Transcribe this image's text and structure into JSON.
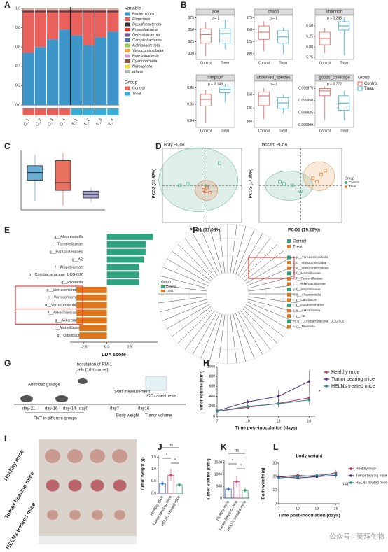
{
  "panel_labels": [
    "A",
    "B",
    "C",
    "D",
    "E",
    "F",
    "G",
    "H",
    "I",
    "J",
    "K",
    "L"
  ],
  "chart_data": [
    {
      "type": "stacked_bar",
      "categories": [
        "C_1",
        "C_2",
        "C_3",
        "C_4",
        "T_1",
        "T_2",
        "T_3",
        "T_4"
      ],
      "series": [
        {
          "name": "Bacteroidota",
          "color": "#3d95c9",
          "values": [
            0.54,
            0.6,
            0.68,
            0.78,
            0.72,
            0.62,
            0.7,
            0.76
          ]
        },
        {
          "name": "Firmicutes",
          "color": "#e8615d",
          "values": [
            0.42,
            0.36,
            0.28,
            0.18,
            0.24,
            0.34,
            0.26,
            0.2
          ]
        },
        {
          "name": "Desulfobacterota",
          "color": "#2b2b2b",
          "values": [
            0.01,
            0.01,
            0.01,
            0.01,
            0.01,
            0.01,
            0.01,
            0.01
          ]
        },
        {
          "name": "Proteobacteria",
          "color": "#e23b2e",
          "values": [
            0.008,
            0.008,
            0.008,
            0.008,
            0.008,
            0.008,
            0.008,
            0.008
          ]
        },
        {
          "name": "Deferribacterota",
          "color": "#7a5a9e",
          "values": [
            0.005,
            0.005,
            0.005,
            0.005,
            0.005,
            0.005,
            0.005,
            0.005
          ]
        },
        {
          "name": "Campilobacterota",
          "color": "#4a6fb5",
          "values": [
            0.004,
            0.004,
            0.004,
            0.004,
            0.004,
            0.004,
            0.004,
            0.004
          ]
        },
        {
          "name": "Actinobacteriota",
          "color": "#9bc95b",
          "values": [
            0.003,
            0.003,
            0.003,
            0.003,
            0.003,
            0.003,
            0.003,
            0.003
          ]
        },
        {
          "name": "Verrucomicrobiota",
          "color": "#f1a340",
          "values": [
            0.003,
            0.003,
            0.003,
            0.003,
            0.003,
            0.003,
            0.003,
            0.003
          ]
        },
        {
          "name": "Patescibacteria",
          "color": "#c7a0d0",
          "values": [
            0.002,
            0.002,
            0.002,
            0.002,
            0.002,
            0.002,
            0.002,
            0.002
          ]
        },
        {
          "name": "Cyanobacteria",
          "color": "#8c564b",
          "values": [
            0.002,
            0.002,
            0.002,
            0.002,
            0.002,
            0.002,
            0.002,
            0.002
          ]
        },
        {
          "name": "Nitrospirota",
          "color": "#f2d94e",
          "values": [
            0.001,
            0.001,
            0.001,
            0.001,
            0.001,
            0.001,
            0.001,
            0.001
          ]
        },
        {
          "name": "others",
          "color": "#b0b0b0",
          "values": [
            0.002,
            0.002,
            0.002,
            0.002,
            0.002,
            0.002,
            0.002,
            0.002
          ]
        }
      ],
      "ylim": [
        0,
        1
      ],
      "yticks": [
        {
          "value": 0,
          "label": "0.0"
        },
        0.2,
        0.4,
        0.6,
        0.8,
        {
          "value": 1,
          "label": "1.0"
        }
      ],
      "legend_title": "Variable",
      "groups": {
        "title": "Group",
        "names": [
          "Control",
          "Treat"
        ],
        "colors": [
          "#e8605a",
          "#3aaed8"
        ],
        "members": [
          0,
          0,
          0,
          0,
          1,
          1,
          1,
          1
        ]
      }
    },
    {
      "type": "box",
      "title": "ace",
      "annotation": "p = 1",
      "categories": [
        "Control",
        "Treat"
      ],
      "colors": [
        "#e8605a",
        "#3aaed8"
      ],
      "boxes": [
        {
          "min": 295,
          "q1": 322,
          "median": 340,
          "q3": 352,
          "max": 365
        },
        {
          "min": 310,
          "q1": 322,
          "median": 342,
          "q3": 352,
          "max": 372
        }
      ],
      "ylim": [
        288,
        380
      ],
      "yticks": [
        300,
        325,
        350,
        375
      ]
    },
    {
      "type": "box",
      "title": "chao1",
      "annotation": "p = 1",
      "categories": [
        "Control",
        "Treat"
      ],
      "colors": [
        "#e8605a",
        "#3aaed8"
      ],
      "boxes": [
        {
          "min": 305,
          "q1": 330,
          "median": 345,
          "q3": 358,
          "max": 368
        },
        {
          "min": 300,
          "q1": 322,
          "median": 335,
          "q3": 348,
          "max": 355
        }
      ],
      "ylim": [
        288,
        380
      ],
      "yticks": [
        300,
        325,
        350,
        375
      ]
    },
    {
      "type": "box",
      "title": "shannon",
      "annotation": "p = 0.248",
      "categories": [
        "Control",
        "Treat"
      ],
      "colors": [
        "#e8605a",
        "#3aaed8"
      ],
      "boxes": [
        {
          "min": 5.85,
          "q1": 6.05,
          "median": 6.2,
          "q3": 6.35,
          "max": 6.45
        },
        {
          "min": 5.8,
          "q1": 6.4,
          "median": 6.5,
          "q3": 6.6,
          "max": 6.7
        }
      ],
      "ylim": [
        5.7,
        6.75
      ],
      "yticks": [
        {
          "value": 5.75,
          "label": "5.75"
        },
        {
          "value": 6,
          "label": "6.00"
        },
        {
          "value": 6.25,
          "label": "6.25"
        },
        {
          "value": 6.5,
          "label": "6.50"
        }
      ]
    },
    {
      "type": "box",
      "title": "simpson",
      "annotation": "p = 0.149",
      "categories": [
        "Control",
        "Treat"
      ],
      "colors": [
        "#e8605a",
        "#3aaed8"
      ],
      "boxes": [
        {
          "min": 0.937,
          "q1": 0.958,
          "median": 0.966,
          "q3": 0.972,
          "max": 0.978
        },
        {
          "min": 0.962,
          "q1": 0.974,
          "median": 0.978,
          "q3": 0.981,
          "max": 0.985
        }
      ],
      "ylim": [
        0.932,
        0.988
      ],
      "yticks": [
        0.94,
        0.96,
        0.98
      ]
    },
    {
      "type": "box",
      "title": "observed_species",
      "annotation": "p = 1",
      "categories": [
        "Control",
        "Treat"
      ],
      "colors": [
        "#e8605a",
        "#3aaed8"
      ],
      "boxes": [
        {
          "min": 305,
          "q1": 330,
          "median": 348,
          "q3": 355,
          "max": 362
        },
        {
          "min": 315,
          "q1": 325,
          "median": 335,
          "q3": 345,
          "max": 350
        }
      ],
      "ylim": [
        290,
        375
      ],
      "yticks": [
        300,
        325,
        350
      ]
    },
    {
      "type": "box",
      "title": "goods_coverage",
      "annotation": "p = 0.772",
      "categories": [
        "Control",
        "Treat"
      ],
      "colors": [
        "#e8605a",
        "#3aaed8"
      ],
      "boxes": [
        {
          "min": 0.99991,
          "q1": 0.99996,
          "median": 0.99997,
          "q3": 0.999975,
          "max": 0.99998
        },
        {
          "min": 0.99991,
          "q1": 0.99993,
          "median": 0.999945,
          "q3": 0.99996,
          "max": 0.99997
        }
      ],
      "ylim": [
        0.999895,
        0.99999
      ],
      "yticks": [
        {
          "value": 0.9999,
          "label": "0.999900"
        },
        {
          "value": 0.999925,
          "label": "0.999925"
        },
        {
          "value": 0.99995,
          "label": "0.999950"
        },
        {
          "value": 0.999975,
          "label": "0.999975"
        }
      ],
      "legend": {
        "title": "Group",
        "names": [
          "Control",
          "Treat"
        ]
      }
    },
    {
      "type": "box",
      "categories": [
        null,
        null,
        null
      ],
      "colors": [
        "#6aaed6",
        "#e8705e",
        "#a8a4d0"
      ],
      "boxes": [
        {
          "min": 4,
          "q1": 6.5,
          "median": 7.4,
          "q3": 8.2,
          "max": 9.5
        },
        {
          "min": 3.5,
          "q1": 5.3,
          "median": 6.2,
          "q3": 8.8,
          "max": 9.7
        },
        {
          "min": 3.9,
          "q1": 4.4,
          "median": 4.8,
          "q3": 5.2,
          "max": 5.6
        }
      ],
      "ylim": [
        3,
        10
      ]
    },
    {
      "type": "scatter",
      "title": "Bray PCoA",
      "xlabel": "PCO1 (31.08%)",
      "ylabel": "PCO2 (22.93%)",
      "xlim": [
        -0.5,
        0.5
      ],
      "ylim": [
        -0.5,
        0.5
      ],
      "series": [
        {
          "name": "Control",
          "color": "#4aa88a",
          "x": [
            -0.28,
            -0.18,
            0.22,
            0.05
          ],
          "values": [
            0,
            0.02,
            0.3,
            -0.01
          ]
        },
        {
          "name": "Treat",
          "color": "#e0622e",
          "x": [
            0.02,
            0.06,
            0.1,
            0.04
          ],
          "values": [
            -0.06,
            -0.03,
            -0.1,
            -0.08
          ]
        }
      ]
    },
    {
      "type": "scatter",
      "title": "Jaccard PCoA",
      "xlabel": "PCO1 (19.26%)",
      "ylabel": "PCO2 (17.65%)",
      "xlim": [
        -0.5,
        0.5
      ],
      "ylim": [
        -0.5,
        0.5
      ],
      "series": [
        {
          "name": "Control",
          "color": "#4aa88a",
          "x": [
            -0.25,
            -0.1,
            0,
            -0.2
          ],
          "values": [
            0.05,
            0,
            -0.08,
            0.02
          ]
        },
        {
          "name": "Treat",
          "color": "#e0862e",
          "x": [
            0.15,
            0.25,
            0.2,
            0.3
          ],
          "values": [
            0.1,
            0.15,
            0.05,
            0.2
          ]
        }
      ],
      "legend_title": "Group"
    },
    {
      "type": "hbar",
      "categories": [
        "g__Alloprevotella",
        "f__Tannerellaceae",
        "g__Parabacteroides",
        "g__A2",
        "f__Atopobiaceae",
        "g__Coriobacteriaceae_UCG-002",
        "g__Rikenella",
        "p__Verrucomicrobiota",
        "c__Verrucomicrobiae",
        "o__Verrucomicrobiales",
        "f__Akkermansiaceae",
        "g__Akkermansia",
        "f__Marinifilaceae",
        "g__Odoribacter"
      ],
      "series": [
        {
          "name": "Control",
          "color": "#2ca27f",
          "values": [
            5,
            4.2,
            4.2,
            4,
            3.5,
            3.5,
            3.5,
            null,
            null,
            null,
            null,
            null,
            null,
            null
          ]
        },
        {
          "name": "Treat",
          "color": "#e0761c",
          "values": [
            null,
            null,
            null,
            null,
            null,
            null,
            null,
            -3.3,
            -3.3,
            -3.3,
            -3.3,
            -3.3,
            -3,
            -3
          ]
        }
      ],
      "xlim": [
        -4,
        5.5
      ],
      "xticks": [
        -2.5,
        {
          "value": 0,
          "label": "0.0"
        },
        2.5
      ],
      "xlabel": "LDA score",
      "legend_title": "Group"
    },
    {
      "type": "line",
      "x": [
        7,
        10,
        13,
        16
      ],
      "xlim": [
        7,
        16.6
      ],
      "xticks": [
        7,
        10,
        13,
        16
      ],
      "ylim": [
        0,
        1000
      ],
      "yticks": [
        0,
        200,
        400,
        600,
        800,
        1000
      ],
      "xlabel": "Time post-inoculation (days)",
      "ylabel": "Tumor volume (mm³)",
      "annotation": "*",
      "series": [
        {
          "name": "Healthy mice",
          "color": "#b8345a",
          "values": [
            100,
            180,
            260,
            370
          ],
          "errors": [
            20,
            40,
            80,
            120
          ]
        },
        {
          "name": "Tumor bearing mice",
          "color": "#4b2f7f",
          "values": [
            110,
            290,
            400,
            700
          ],
          "errors": [
            20,
            60,
            120,
            220
          ]
        },
        {
          "name": "HELNs treated mice",
          "color": "#2b8a8a",
          "values": [
            100,
            200,
            250,
            330
          ],
          "errors": [
            20,
            40,
            60,
            100
          ]
        }
      ]
    },
    {
      "type": "dot_bar",
      "categories": [
        "Healthy mice",
        "Tumor bearing mice",
        "HELNs treated mice"
      ],
      "colors": [
        "#3a72c8",
        "#d6456f",
        "#2f9a6a"
      ],
      "values": [
        0.4,
        0.75,
        0.35
      ],
      "errors": [
        0.1,
        0.25,
        0.08
      ],
      "ylim": [
        0,
        1.6
      ],
      "yticks": [
        {
          "value": 0,
          "label": "0.0"
        },
        0.5,
        {
          "value": 1,
          "label": "1.0"
        },
        1.5
      ],
      "ylabel": "Tumor weight (g)",
      "annotations": [
        "ns",
        "*",
        "*"
      ]
    },
    {
      "type": "dot_bar",
      "categories": [
        "Healthy mice",
        "Tumor bearing mice",
        "HELNs treated mice"
      ],
      "colors": [
        "#3a72c8",
        "#d6456f",
        "#2f9a6a"
      ],
      "values": [
        380,
        700,
        330
      ],
      "errors": [
        100,
        250,
        80
      ],
      "ylim": [
        0,
        1600
      ],
      "yticks": [
        0,
        500,
        1000,
        1500
      ],
      "ylabel": "Tumor volume (mm³)",
      "annotations": [
        "ns",
        "*",
        "*"
      ]
    },
    {
      "type": "line",
      "title": "body weight",
      "x": [
        7,
        10,
        13,
        16
      ],
      "xlim": [
        7,
        16.6
      ],
      "xticks": [
        7,
        10,
        13,
        16
      ],
      "ylim": [
        0,
        30
      ],
      "yticks": [
        0,
        10,
        20,
        30
      ],
      "xlabel": "Time post-inoculation (days)",
      "ylabel": "Body weight (g)",
      "annotation": "ns",
      "series": [
        {
          "name": "Healthy mice",
          "color": "#b8345a",
          "values": [
            20,
            21,
            20,
            23
          ],
          "errors": [
            2,
            3,
            2,
            2
          ]
        },
        {
          "name": "Tumor bearing mice",
          "color": "#4b2f7f",
          "values": [
            20,
            19,
            20,
            21
          ],
          "errors": [
            2,
            2,
            2,
            2
          ]
        },
        {
          "name": "HELNs treated mice",
          "color": "#2b8a8a",
          "values": [
            19,
            20,
            21,
            22
          ],
          "errors": [
            2,
            2,
            2,
            2
          ]
        }
      ]
    }
  ],
  "cladogram": {
    "groups": [
      "Control",
      "Treat"
    ],
    "legend": [
      "a: p__Verrucomicrobiota",
      "b: c__Verrucomicrobiae",
      "c: o__Verrucomicrobiales",
      "d: f__Marinifilaceae",
      "e: f__Tannerellaceae",
      "f: f__Akkermansiaceae",
      "g: f__Atopobiaceae",
      "h: g__Alloprevotella",
      "i: g__Odoribacter",
      "j: g__Parabacteroides",
      "k: g__Akkermansia",
      "l: g__A2",
      "m: g__Coriobacteriaceae_UCG-002",
      "n: g__Rikenella"
    ]
  },
  "schematic": {
    "inoculation": [
      "Inoculation of RM-1",
      "cells (10⁵/mouse)"
    ],
    "gavage": "Antibiotic gavage",
    "start": "Start measurement",
    "anesthesia": "CO₂ anesthesia",
    "fmt": "FMT in different groups",
    "days": [
      "day-21",
      "day-16",
      "day-14",
      "day0",
      "day7",
      "day16"
    ],
    "measures": [
      "Body weight",
      "Tumor volume"
    ]
  },
  "photo": {
    "rows": [
      "Healthy mice",
      "Tumor bearing mice",
      "HELNs treated mice"
    ]
  },
  "watermark": "公众号 · 英拜生物"
}
